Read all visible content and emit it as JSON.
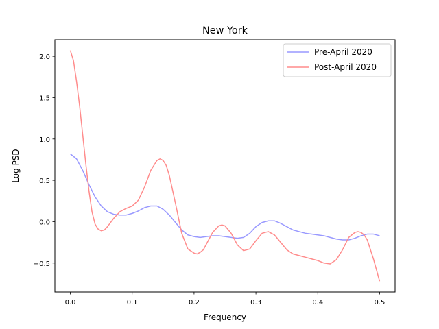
{
  "chart_data": {
    "type": "line",
    "title": "New York",
    "xlabel": "Frequency",
    "ylabel": "Log PSD",
    "xlim": [
      -0.025,
      0.525
    ],
    "ylim": [
      -0.85,
      2.2
    ],
    "xticks": [
      0.0,
      0.1,
      0.2,
      0.3,
      0.4,
      0.5
    ],
    "xtick_labels": [
      "0.0",
      "0.1",
      "0.2",
      "0.3",
      "0.4",
      "0.5"
    ],
    "yticks": [
      -0.5,
      0.0,
      0.5,
      1.0,
      1.5,
      2.0
    ],
    "ytick_labels": [
      "−0.5",
      "0.0",
      "0.5",
      "1.0",
      "1.5",
      "2.0"
    ],
    "grid": false,
    "legend_position": "top-right",
    "series": [
      {
        "name": "Pre-April 2020",
        "color": "#9999ff",
        "x": [
          0.0,
          0.01,
          0.02,
          0.03,
          0.04,
          0.05,
          0.06,
          0.07,
          0.08,
          0.09,
          0.1,
          0.11,
          0.12,
          0.13,
          0.14,
          0.15,
          0.16,
          0.17,
          0.18,
          0.19,
          0.2,
          0.21,
          0.22,
          0.23,
          0.24,
          0.25,
          0.26,
          0.27,
          0.28,
          0.29,
          0.3,
          0.31,
          0.32,
          0.33,
          0.34,
          0.35,
          0.36,
          0.37,
          0.38,
          0.39,
          0.4,
          0.41,
          0.42,
          0.43,
          0.44,
          0.45,
          0.46,
          0.47,
          0.48,
          0.49,
          0.5
        ],
        "y": [
          0.82,
          0.76,
          0.62,
          0.45,
          0.3,
          0.19,
          0.12,
          0.09,
          0.08,
          0.08,
          0.1,
          0.13,
          0.17,
          0.19,
          0.19,
          0.15,
          0.08,
          -0.01,
          -0.1,
          -0.16,
          -0.18,
          -0.19,
          -0.18,
          -0.17,
          -0.17,
          -0.18,
          -0.19,
          -0.2,
          -0.19,
          -0.14,
          -0.06,
          -0.01,
          0.01,
          0.01,
          -0.02,
          -0.06,
          -0.1,
          -0.12,
          -0.14,
          -0.15,
          -0.16,
          -0.17,
          -0.19,
          -0.21,
          -0.22,
          -0.22,
          -0.2,
          -0.17,
          -0.15,
          -0.15,
          -0.17
        ]
      },
      {
        "name": "Post-April 2020",
        "color": "#ff8c8c",
        "x": [
          0.0,
          0.005,
          0.01,
          0.015,
          0.02,
          0.025,
          0.03,
          0.035,
          0.04,
          0.045,
          0.05,
          0.055,
          0.06,
          0.065,
          0.07,
          0.08,
          0.09,
          0.1,
          0.11,
          0.12,
          0.13,
          0.14,
          0.145,
          0.15,
          0.155,
          0.16,
          0.17,
          0.18,
          0.19,
          0.2,
          0.205,
          0.21,
          0.215,
          0.22,
          0.23,
          0.24,
          0.245,
          0.25,
          0.26,
          0.27,
          0.28,
          0.29,
          0.3,
          0.31,
          0.32,
          0.33,
          0.34,
          0.35,
          0.36,
          0.37,
          0.38,
          0.39,
          0.4,
          0.41,
          0.42,
          0.43,
          0.44,
          0.45,
          0.46,
          0.465,
          0.47,
          0.475,
          0.48,
          0.49,
          0.5
        ],
        "y": [
          2.07,
          1.95,
          1.7,
          1.4,
          1.05,
          0.7,
          0.38,
          0.12,
          -0.03,
          -0.09,
          -0.11,
          -0.1,
          -0.06,
          -0.01,
          0.04,
          0.12,
          0.16,
          0.19,
          0.26,
          0.42,
          0.62,
          0.74,
          0.76,
          0.74,
          0.68,
          0.56,
          0.22,
          -0.14,
          -0.33,
          -0.38,
          -0.39,
          -0.37,
          -0.34,
          -0.27,
          -0.13,
          -0.05,
          -0.04,
          -0.05,
          -0.14,
          -0.28,
          -0.35,
          -0.33,
          -0.23,
          -0.14,
          -0.12,
          -0.16,
          -0.25,
          -0.34,
          -0.39,
          -0.41,
          -0.43,
          -0.45,
          -0.47,
          -0.5,
          -0.51,
          -0.46,
          -0.34,
          -0.19,
          -0.13,
          -0.12,
          -0.13,
          -0.16,
          -0.22,
          -0.45,
          -0.72
        ]
      }
    ]
  }
}
